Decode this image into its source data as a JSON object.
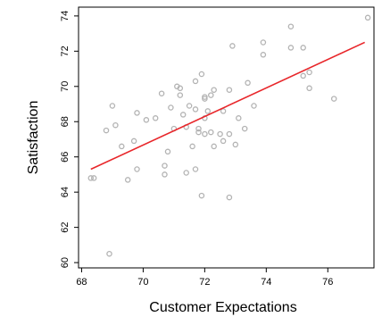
{
  "chart_data": {
    "type": "scatter",
    "xlabel": "Customer Expectations",
    "ylabel": "Satisfaction",
    "xlim": [
      67.9,
      77.5
    ],
    "ylim": [
      59.7,
      74.5
    ],
    "xticks": [
      68,
      70,
      72,
      74,
      76
    ],
    "yticks": [
      60,
      62,
      64,
      66,
      68,
      70,
      72,
      74
    ],
    "grid": false,
    "colors": {
      "points": "#b3b3b3",
      "trendline": "#e8262a",
      "axis": "#000000"
    },
    "points": [
      {
        "x": 68.3,
        "y": 64.8
      },
      {
        "x": 68.4,
        "y": 64.8
      },
      {
        "x": 68.8,
        "y": 67.5
      },
      {
        "x": 69.0,
        "y": 68.9
      },
      {
        "x": 69.1,
        "y": 67.8
      },
      {
        "x": 68.9,
        "y": 60.5
      },
      {
        "x": 69.3,
        "y": 66.6
      },
      {
        "x": 69.5,
        "y": 64.7
      },
      {
        "x": 69.7,
        "y": 66.9
      },
      {
        "x": 69.8,
        "y": 65.3
      },
      {
        "x": 69.8,
        "y": 68.5
      },
      {
        "x": 70.1,
        "y": 68.1
      },
      {
        "x": 70.4,
        "y": 68.2
      },
      {
        "x": 70.6,
        "y": 69.6
      },
      {
        "x": 70.7,
        "y": 65.5
      },
      {
        "x": 70.7,
        "y": 65.0
      },
      {
        "x": 70.8,
        "y": 66.3
      },
      {
        "x": 70.9,
        "y": 68.8
      },
      {
        "x": 71.0,
        "y": 67.6
      },
      {
        "x": 71.1,
        "y": 70.0
      },
      {
        "x": 71.2,
        "y": 69.9
      },
      {
        "x": 71.2,
        "y": 69.5
      },
      {
        "x": 71.3,
        "y": 68.4
      },
      {
        "x": 71.4,
        "y": 67.7
      },
      {
        "x": 71.4,
        "y": 65.1
      },
      {
        "x": 71.5,
        "y": 68.9
      },
      {
        "x": 71.6,
        "y": 66.6
      },
      {
        "x": 71.7,
        "y": 65.3
      },
      {
        "x": 71.7,
        "y": 68.7
      },
      {
        "x": 71.7,
        "y": 70.3
      },
      {
        "x": 71.8,
        "y": 67.4
      },
      {
        "x": 71.8,
        "y": 67.6
      },
      {
        "x": 71.9,
        "y": 70.7
      },
      {
        "x": 72.0,
        "y": 69.4
      },
      {
        "x": 72.0,
        "y": 69.3
      },
      {
        "x": 72.0,
        "y": 68.2
      },
      {
        "x": 72.0,
        "y": 67.3
      },
      {
        "x": 72.1,
        "y": 68.6
      },
      {
        "x": 72.2,
        "y": 69.5
      },
      {
        "x": 72.2,
        "y": 67.4
      },
      {
        "x": 72.3,
        "y": 66.6
      },
      {
        "x": 72.3,
        "y": 69.8
      },
      {
        "x": 72.5,
        "y": 67.3
      },
      {
        "x": 72.6,
        "y": 68.6
      },
      {
        "x": 72.6,
        "y": 66.9
      },
      {
        "x": 71.9,
        "y": 63.8
      },
      {
        "x": 72.8,
        "y": 69.8
      },
      {
        "x": 72.8,
        "y": 67.3
      },
      {
        "x": 72.8,
        "y": 63.7
      },
      {
        "x": 72.9,
        "y": 72.3
      },
      {
        "x": 73.0,
        "y": 66.7
      },
      {
        "x": 73.1,
        "y": 68.2
      },
      {
        "x": 73.3,
        "y": 67.6
      },
      {
        "x": 73.4,
        "y": 70.2
      },
      {
        "x": 73.6,
        "y": 68.9
      },
      {
        "x": 73.9,
        "y": 71.8
      },
      {
        "x": 73.9,
        "y": 72.5
      },
      {
        "x": 74.8,
        "y": 72.2
      },
      {
        "x": 74.8,
        "y": 73.4
      },
      {
        "x": 75.2,
        "y": 72.2
      },
      {
        "x": 75.2,
        "y": 70.6
      },
      {
        "x": 75.4,
        "y": 70.8
      },
      {
        "x": 75.4,
        "y": 69.9
      },
      {
        "x": 76.2,
        "y": 69.3
      },
      {
        "x": 77.3,
        "y": 73.9
      }
    ],
    "trendline": {
      "x": [
        68.3,
        77.2
      ],
      "y": [
        65.3,
        72.5
      ]
    }
  }
}
